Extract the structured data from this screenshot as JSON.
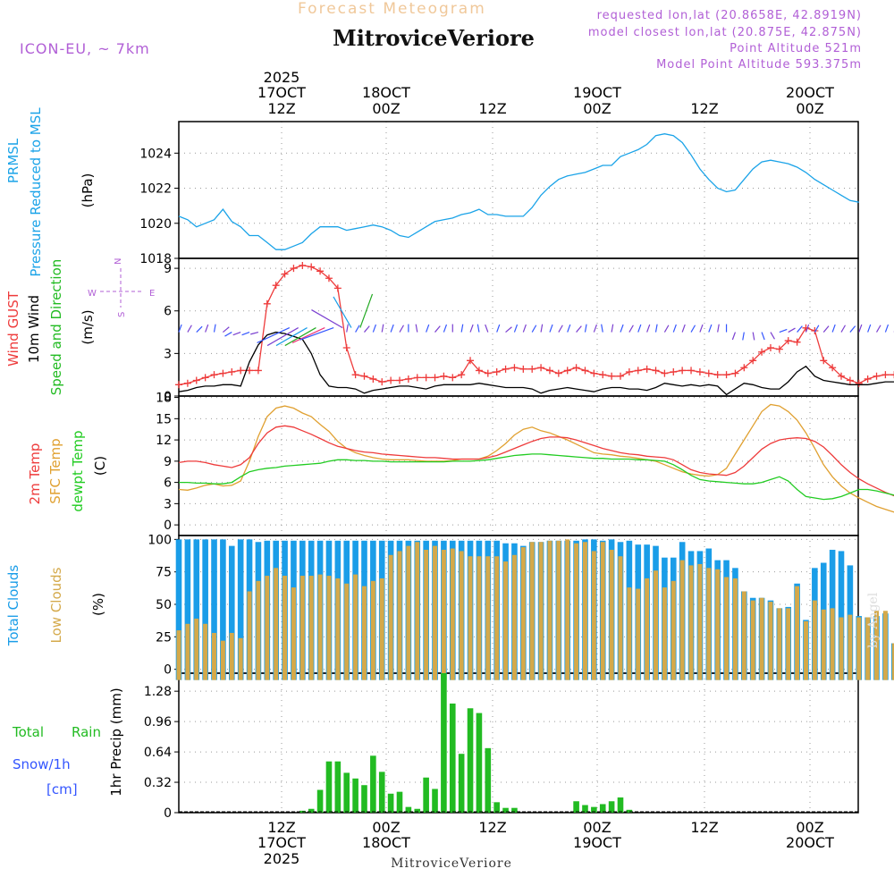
{
  "header": {
    "subtitle": "Forecast Meteogram",
    "title": "MitroviceVeriore",
    "model": "ICON-EU, ~ 7km",
    "requested": "requested lon,lat (20.8658E, 42.8919N)",
    "closest": "model closest lon,lat (20.875E, 42.875N)",
    "point_alt": "Point Altitude 521m",
    "model_alt": "Model Point Altitude 593.375m"
  },
  "footer": {
    "location": "MitroviceVeriore",
    "credit": "by Angel"
  },
  "colors": {
    "pressure": "#1aa3e8",
    "gust": "#ee3b3b",
    "wind": "#000000",
    "dir": "#22bb22",
    "temp": "#ee3b3b",
    "sfc": "#e0a030",
    "dewpt": "#22cc22",
    "total_clouds": "#1a9de8",
    "low_clouds": "#d4a94a",
    "rain": "#22bb22",
    "snow": "#3355ff",
    "purple": "#b15fd6"
  },
  "chart_data": [
    {
      "type": "line",
      "title": "PRMSL Pressure Reduced to MSL",
      "ylabel": "(hPa)",
      "ylabel_parts": [
        "PRMSL",
        "Pressure Reduced to MSL"
      ],
      "ylim": [
        1018,
        1025.8
      ],
      "yticks": [
        1018,
        1020,
        1022,
        1024
      ],
      "series": [
        {
          "name": "PRMSL",
          "values": [
            1020.4,
            1020.2,
            1019.8,
            1020.0,
            1020.2,
            1020.8,
            1020.1,
            1019.8,
            1019.3,
            1019.3,
            1018.9,
            1018.5,
            1018.5,
            1018.7,
            1018.9,
            1019.4,
            1019.8,
            1019.8,
            1019.8,
            1019.6,
            1019.7,
            1019.8,
            1019.9,
            1019.8,
            1019.6,
            1019.3,
            1019.2,
            1019.5,
            1019.8,
            1020.1,
            1020.2,
            1020.3,
            1020.5,
            1020.6,
            1020.8,
            1020.5,
            1020.5,
            1020.4,
            1020.4,
            1020.4,
            1020.9,
            1021.6,
            1022.1,
            1022.5,
            1022.7,
            1022.8,
            1022.9,
            1023.1,
            1023.3,
            1023.3,
            1023.8,
            1024.0,
            1024.2,
            1024.5,
            1025.0,
            1025.1,
            1025.0,
            1024.6,
            1023.9,
            1023.1,
            1022.5,
            1022.0,
            1021.8,
            1021.9,
            1022.5,
            1023.1,
            1023.5,
            1023.6,
            1023.5,
            1023.4,
            1023.2,
            1022.9,
            1022.5,
            1022.2,
            1021.9,
            1021.6,
            1021.3,
            1021.2
          ]
        }
      ]
    },
    {
      "type": "line",
      "title": "Wind GUST 10m Wind Speed and Direction",
      "ylabel": "(m/s)",
      "ylabel_parts": [
        "Wind GUST",
        "10m Wind",
        "Speed and Direction"
      ],
      "compass": {
        "n": "N",
        "s": "S",
        "e": "E",
        "w": "W"
      },
      "ylim": [
        0,
        9.7
      ],
      "yticks": [
        0,
        3,
        6,
        9
      ],
      "series": [
        {
          "name": "Wind GUST",
          "values": [
            0.8,
            0.9,
            1.1,
            1.3,
            1.5,
            1.6,
            1.7,
            1.8,
            1.8,
            1.8,
            6.5,
            7.8,
            8.6,
            9.0,
            9.2,
            9.1,
            8.8,
            8.3,
            7.6,
            3.4,
            1.5,
            1.4,
            1.2,
            1.0,
            1.1,
            1.1,
            1.2,
            1.3,
            1.3,
            1.3,
            1.4,
            1.3,
            1.5,
            2.5,
            1.8,
            1.6,
            1.7,
            1.9,
            2.0,
            1.9,
            1.9,
            2.0,
            1.8,
            1.6,
            1.8,
            2.0,
            1.8,
            1.6,
            1.5,
            1.4,
            1.4,
            1.7,
            1.8,
            1.9,
            1.8,
            1.6,
            1.7,
            1.8,
            1.8,
            1.7,
            1.6,
            1.5,
            1.5,
            1.6,
            2.0,
            2.5,
            3.1,
            3.4,
            3.3,
            3.9,
            3.8,
            4.8,
            4.6,
            2.5,
            2.0,
            1.4,
            1.1,
            0.9,
            1.2,
            1.4,
            1.5,
            1.5,
            1.5,
            1.4,
            1.3,
            1.2,
            0.7
          ]
        },
        {
          "name": "10m Wind",
          "values": [
            0.3,
            0.4,
            0.6,
            0.7,
            0.7,
            0.8,
            0.8,
            0.7,
            2.4,
            3.6,
            4.3,
            4.5,
            4.4,
            4.2,
            4.0,
            3.0,
            1.5,
            0.7,
            0.6,
            0.6,
            0.5,
            0.2,
            0.4,
            0.5,
            0.6,
            0.7,
            0.7,
            0.6,
            0.5,
            0.7,
            0.8,
            0.8,
            0.8,
            0.8,
            0.9,
            0.8,
            0.7,
            0.6,
            0.6,
            0.6,
            0.5,
            0.2,
            0.4,
            0.5,
            0.6,
            0.5,
            0.4,
            0.3,
            0.5,
            0.6,
            0.6,
            0.5,
            0.5,
            0.4,
            0.6,
            0.9,
            0.8,
            0.7,
            0.8,
            0.7,
            0.8,
            0.7,
            0.1,
            0.5,
            0.9,
            0.8,
            0.6,
            0.5,
            0.5,
            1.0,
            1.7,
            2.1,
            1.4,
            1.1,
            1.0,
            0.9,
            0.8,
            0.8,
            0.8,
            0.9,
            1.0,
            1.0,
            0.9,
            0.8,
            0.7,
            0.6,
            0.4
          ]
        }
      ],
      "direction_arrows_deg": [
        200,
        210,
        225,
        200,
        190,
        230,
        60,
        70,
        70,
        75,
        65,
        60,
        60,
        60,
        65,
        70,
        120,
        150,
        200,
        190,
        210,
        220,
        200,
        190,
        200,
        210,
        180,
        170,
        200,
        220,
        200,
        180,
        190,
        200,
        170,
        160,
        200,
        230,
        200,
        200,
        210,
        190,
        200,
        210,
        200,
        220,
        190,
        200,
        170,
        190,
        200,
        210,
        200,
        200,
        190,
        210,
        200,
        200,
        210,
        200,
        200,
        190,
        180,
        20,
        10,
        350,
        340,
        330,
        250,
        240,
        220,
        200,
        210,
        220,
        200,
        210,
        220,
        200,
        200,
        210,
        200,
        190,
        200,
        210,
        200,
        200,
        200
      ]
    },
    {
      "type": "line",
      "title": "2m Temp SFC Temp dewpt Temp",
      "ylabel": "(C)",
      "ylabel_parts": [
        "2m Temp",
        "SFC Temp",
        "dewpt Temp"
      ],
      "ylim": [
        -1.5,
        18.2
      ],
      "yticks": [
        0,
        3,
        6,
        9,
        12,
        15,
        18
      ],
      "series": [
        {
          "name": "2m Temp",
          "values": [
            8.8,
            9.0,
            9.0,
            8.8,
            8.5,
            8.3,
            8.1,
            8.5,
            9.5,
            11.5,
            13.0,
            13.8,
            14.0,
            13.8,
            13.3,
            12.8,
            12.2,
            11.6,
            11.1,
            10.8,
            10.5,
            10.3,
            10.2,
            10.0,
            9.9,
            9.8,
            9.7,
            9.6,
            9.5,
            9.5,
            9.4,
            9.3,
            9.3,
            9.3,
            9.3,
            9.5,
            9.8,
            10.3,
            10.8,
            11.3,
            11.8,
            12.2,
            12.4,
            12.4,
            12.3,
            12.0,
            11.6,
            11.2,
            10.8,
            10.5,
            10.2,
            10.0,
            9.9,
            9.7,
            9.6,
            9.5,
            9.2,
            8.5,
            7.8,
            7.4,
            7.2,
            7.1,
            7.0,
            7.4,
            8.3,
            9.5,
            10.7,
            11.5,
            12.0,
            12.2,
            12.3,
            12.2,
            11.8,
            11.0,
            9.8,
            8.5,
            7.4,
            6.5,
            5.8,
            5.2,
            4.6,
            4.1,
            3.7,
            3.3,
            3.0,
            2.7,
            2.4,
            2.2,
            2.1,
            2.1,
            2.1
          ]
        },
        {
          "name": "SFC Temp",
          "values": [
            5.0,
            4.9,
            5.2,
            5.6,
            5.8,
            5.5,
            5.6,
            6.2,
            9.0,
            12.5,
            15.3,
            16.5,
            16.8,
            16.5,
            15.8,
            15.3,
            14.2,
            13.2,
            11.8,
            10.8,
            10.2,
            9.8,
            9.5,
            9.3,
            9.2,
            9.2,
            9.2,
            9.1,
            9.0,
            9.0,
            9.0,
            9.1,
            9.3,
            9.3,
            9.3,
            9.7,
            10.5,
            11.5,
            12.7,
            13.5,
            13.8,
            13.3,
            13.0,
            12.5,
            12.0,
            11.4,
            10.8,
            10.2,
            10.0,
            9.9,
            9.7,
            9.6,
            9.4,
            9.2,
            9.0,
            8.5,
            8.0,
            7.5,
            7.2,
            7.0,
            6.9,
            7.1,
            8.0,
            10.0,
            12.0,
            14.0,
            16.0,
            17.0,
            16.8,
            16.0,
            14.8,
            13.0,
            10.8,
            8.5,
            6.8,
            5.5,
            4.5,
            3.8,
            3.2,
            2.6,
            2.2,
            1.8,
            1.3,
            0.8,
            0.5,
            0.2,
            -0.2,
            -0.5,
            -0.8,
            -1.1,
            -1.4
          ]
        },
        {
          "name": "dewpt Temp",
          "values": [
            6.0,
            6.0,
            5.9,
            5.9,
            5.8,
            5.8,
            6.0,
            6.8,
            7.5,
            7.8,
            8.0,
            8.1,
            8.3,
            8.4,
            8.5,
            8.6,
            8.7,
            9.0,
            9.2,
            9.2,
            9.1,
            9.1,
            9.0,
            9.0,
            8.9,
            8.9,
            8.9,
            8.9,
            8.9,
            8.9,
            8.9,
            9.0,
            9.0,
            9.0,
            9.1,
            9.2,
            9.4,
            9.6,
            9.8,
            9.9,
            10.0,
            10.0,
            9.9,
            9.8,
            9.7,
            9.6,
            9.5,
            9.4,
            9.4,
            9.3,
            9.3,
            9.3,
            9.2,
            9.2,
            9.1,
            9.0,
            8.5,
            7.8,
            7.0,
            6.4,
            6.2,
            6.1,
            6.0,
            5.9,
            5.8,
            5.8,
            6.0,
            6.4,
            6.8,
            6.2,
            5.0,
            4.0,
            3.8,
            3.6,
            3.7,
            4.0,
            4.5,
            5.0,
            5.0,
            4.8,
            4.5,
            4.2,
            3.8,
            3.4,
            3.0,
            2.6,
            2.3,
            2.0,
            1.7,
            1.5,
            1.3
          ]
        }
      ]
    },
    {
      "type": "bar",
      "title": "Total Clouds Low Clouds",
      "ylabel": "(%)",
      "ylabel_parts": [
        "Total Clouds",
        "Low Clouds"
      ],
      "ylim": [
        -3,
        103
      ],
      "yticks": [
        0,
        25,
        50,
        75,
        100
      ],
      "series": [
        {
          "name": "Total Clouds",
          "values": [
            100,
            100,
            100,
            100,
            100,
            100,
            95,
            100,
            100,
            98,
            99,
            99,
            99,
            99,
            99,
            99,
            99,
            99,
            99,
            99,
            99,
            99,
            99,
            99,
            99,
            99,
            99,
            99,
            99,
            99,
            99,
            99,
            99,
            99,
            99,
            99,
            99,
            97,
            97,
            95,
            98,
            98,
            99,
            99,
            99,
            99,
            100,
            100,
            99,
            100,
            98,
            99,
            96,
            96,
            95,
            86,
            86,
            98,
            91,
            91,
            93,
            84,
            84,
            78,
            60,
            55,
            55,
            53,
            47,
            48,
            66,
            38,
            78,
            82,
            92,
            91,
            80,
            41,
            40,
            41,
            43,
            20,
            0,
            10,
            55,
            100,
            55,
            100
          ]
        },
        {
          "name": "Low Clouds",
          "values": [
            30,
            35,
            39,
            35,
            28,
            22,
            28,
            24,
            60,
            68,
            72,
            78,
            72,
            63,
            72,
            72,
            73,
            72,
            70,
            66,
            73,
            64,
            68,
            70,
            88,
            91,
            95,
            98,
            92,
            95,
            92,
            93,
            91,
            87,
            87,
            87,
            87,
            83,
            88,
            94,
            98,
            98,
            99,
            99,
            100,
            97,
            98,
            91,
            98,
            92,
            87,
            63,
            62,
            70,
            76,
            63,
            68,
            84,
            80,
            81,
            78,
            77,
            71,
            70,
            60,
            53,
            55,
            52,
            47,
            47,
            64,
            37,
            53,
            46,
            47,
            40,
            42,
            40,
            40,
            45,
            45,
            20,
            4,
            3,
            18,
            20,
            20,
            20
          ]
        }
      ]
    },
    {
      "type": "bar",
      "title": "1hr Precip",
      "ylabel": "1hr Precip (mm)",
      "ylabel_parts": [
        "Total",
        "Rain",
        "Snow/1h",
        "[cm]"
      ],
      "ylim": [
        0,
        1.47
      ],
      "yticks": [
        0,
        0.32,
        0.64,
        0.96,
        1.28
      ],
      "series": [
        {
          "name": "Total Rain",
          "values": [
            0,
            0,
            0,
            0,
            0,
            0,
            0,
            0,
            0,
            0,
            0,
            0,
            0,
            0,
            0.02,
            0.04,
            0.24,
            0.54,
            0.54,
            0.42,
            0.36,
            0.29,
            0.6,
            0.43,
            0.2,
            0.22,
            0.06,
            0.04,
            0.37,
            0.25,
            1.47,
            1.15,
            0.62,
            1.1,
            1.05,
            0.68,
            0.11,
            0.05,
            0.05,
            0,
            0,
            0,
            0,
            0,
            0,
            0.12,
            0.08,
            0.06,
            0.09,
            0.12,
            0.16,
            0.03,
            0,
            0,
            0,
            0,
            0,
            0,
            0,
            0,
            0,
            0,
            0,
            0,
            0,
            0,
            0,
            0,
            0,
            0,
            0,
            0,
            0,
            0,
            0,
            0,
            0,
            0,
            0,
            0,
            0,
            0,
            0,
            0,
            0,
            0,
            0,
            0
          ]
        },
        {
          "name": "Snow/1h",
          "values": [
            0
          ]
        }
      ]
    }
  ],
  "time_axis": {
    "top_labels": [
      {
        "line1": "2025",
        "line2": "17OCT",
        "line3": "12Z"
      },
      {
        "line1": "",
        "line2": "18OCT",
        "line3": "00Z"
      },
      {
        "line1": "",
        "line2": "",
        "line3": "12Z"
      },
      {
        "line1": "",
        "line2": "19OCT",
        "line3": "00Z"
      },
      {
        "line1": "",
        "line2": "",
        "line3": "12Z"
      },
      {
        "line1": "",
        "line2": "20OCT",
        "line3": "00Z"
      }
    ],
    "bottom_labels": [
      {
        "line1": "12Z",
        "line2": "17OCT",
        "line3": "2025"
      },
      {
        "line1": "00Z",
        "line2": "18OCT",
        "line3": ""
      },
      {
        "line1": "12Z",
        "line2": "",
        "line3": ""
      },
      {
        "line1": "00Z",
        "line2": "19OCT",
        "line3": ""
      },
      {
        "line1": "12Z",
        "line2": "",
        "line3": ""
      },
      {
        "line1": "00Z",
        "line2": "20OCT",
        "line3": ""
      }
    ]
  }
}
